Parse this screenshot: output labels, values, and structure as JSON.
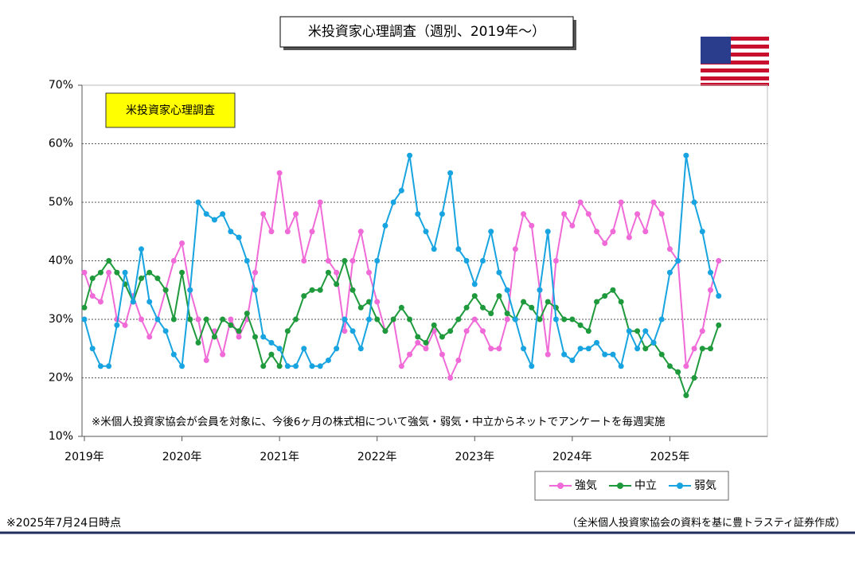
{
  "chart_data": {
    "type": "line",
    "title": "米投資家心理調査（週別、2019年～）",
    "annotation": "米投資家心理調査",
    "note": "※米個人投資家協会が会員を対象に、今後6ヶ月の株式相について強気・弱気・中立からネットでアンケートを毎週実施",
    "footnote": "※2025年7月24日時点",
    "source": "（全米個人投資家協会の資料を基に豊トラスティ証券作成）",
    "x": [
      2019.0,
      2019.0833,
      2019.1667,
      2019.25,
      2019.3333,
      2019.4167,
      2019.5,
      2019.5833,
      2019.6667,
      2019.75,
      2019.8333,
      2019.9167,
      2020.0,
      2020.0833,
      2020.1667,
      2020.25,
      2020.3333,
      2020.4167,
      2020.5,
      2020.5833,
      2020.6667,
      2020.75,
      2020.8333,
      2020.9167,
      2021.0,
      2021.0833,
      2021.1667,
      2021.25,
      2021.3333,
      2021.4167,
      2021.5,
      2021.5833,
      2021.6667,
      2021.75,
      2021.8333,
      2021.9167,
      2022.0,
      2022.0833,
      2022.1667,
      2022.25,
      2022.3333,
      2022.4167,
      2022.5,
      2022.5833,
      2022.6667,
      2022.75,
      2022.8333,
      2022.9167,
      2023.0,
      2023.0833,
      2023.1667,
      2023.25,
      2023.3333,
      2023.4167,
      2023.5,
      2023.5833,
      2023.6667,
      2023.75,
      2023.8333,
      2023.9167,
      2024.0,
      2024.0833,
      2024.1667,
      2024.25,
      2024.3333,
      2024.4167,
      2024.5,
      2024.5833,
      2024.6667,
      2024.75,
      2024.8333,
      2024.9167,
      2025.0,
      2025.0833,
      2025.1667,
      2025.25,
      2025.3333,
      2025.4167,
      2025.5
    ],
    "series": [
      {
        "name": "強気",
        "color": "#f06ad8",
        "values": [
          38,
          34,
          33,
          38,
          30,
          29,
          34,
          30,
          27,
          30,
          35,
          40,
          43,
          35,
          30,
          23,
          28,
          24,
          30,
          27,
          30,
          38,
          48,
          45,
          55,
          45,
          48,
          40,
          45,
          50,
          40,
          38,
          28,
          40,
          45,
          38,
          33,
          28,
          30,
          22,
          24,
          26,
          25,
          28,
          24,
          20,
          23,
          28,
          30,
          28,
          25,
          25,
          30,
          42,
          48,
          46,
          35,
          24,
          40,
          48,
          46,
          50,
          48,
          45,
          43,
          45,
          50,
          44,
          48,
          45,
          50,
          48,
          42,
          40,
          22,
          25,
          28,
          35,
          40
        ]
      },
      {
        "name": "中立",
        "color": "#1e9a3c",
        "values": [
          32,
          37,
          38,
          40,
          38,
          36,
          33,
          37,
          38,
          37,
          35,
          30,
          38,
          30,
          26,
          30,
          27,
          30,
          29,
          28,
          31,
          27,
          22,
          24,
          22,
          28,
          30,
          34,
          35,
          35,
          38,
          36,
          40,
          35,
          32,
          33,
          30,
          28,
          30,
          32,
          30,
          27,
          26,
          29,
          27,
          28,
          30,
          32,
          34,
          32,
          31,
          34,
          31,
          30,
          33,
          32,
          30,
          33,
          32,
          30,
          30,
          29,
          28,
          33,
          34,
          35,
          33,
          28,
          28,
          25,
          26,
          24,
          22,
          21,
          17,
          20,
          25,
          25,
          29
        ]
      },
      {
        "name": "弱気",
        "color": "#18a4e0",
        "values": [
          30,
          25,
          22,
          22,
          29,
          38,
          33,
          42,
          33,
          30,
          28,
          24,
          22,
          35,
          50,
          48,
          47,
          48,
          45,
          44,
          40,
          35,
          27,
          26,
          25,
          22,
          22,
          25,
          22,
          22,
          23,
          25,
          30,
          28,
          25,
          30,
          40,
          46,
          50,
          52,
          58,
          48,
          45,
          42,
          48,
          55,
          42,
          40,
          36,
          40,
          45,
          38,
          35,
          30,
          25,
          22,
          35,
          45,
          30,
          24,
          23,
          25,
          25,
          26,
          24,
          24,
          22,
          28,
          25,
          28,
          26,
          30,
          38,
          40,
          58,
          50,
          45,
          38,
          34
        ]
      }
    ],
    "xlim": [
      2019,
      2026
    ],
    "xticks": [
      {
        "value": 2019,
        "label": "2019年"
      },
      {
        "value": 2020,
        "label": "2020年"
      },
      {
        "value": 2021,
        "label": "2021年"
      },
      {
        "value": 2022,
        "label": "2022年"
      },
      {
        "value": 2023,
        "label": "2023年"
      },
      {
        "value": 2024,
        "label": "2024年"
      },
      {
        "value": 2025,
        "label": "2025年"
      }
    ],
    "ylim": [
      10,
      70
    ],
    "yticks": [
      {
        "value": 10,
        "label": "10%"
      },
      {
        "value": 20,
        "label": "20%"
      },
      {
        "value": 30,
        "label": "30%"
      },
      {
        "value": 40,
        "label": "40%"
      },
      {
        "value": 50,
        "label": "50%"
      },
      {
        "value": 60,
        "label": "60%"
      },
      {
        "value": 70,
        "label": "70%"
      }
    ],
    "grid": true
  }
}
